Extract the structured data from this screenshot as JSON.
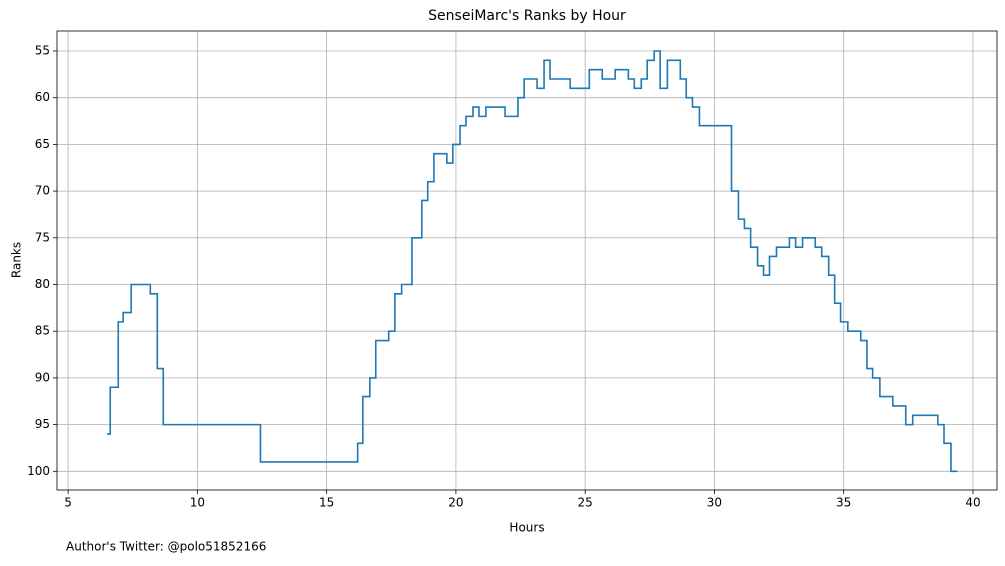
{
  "chart_data": {
    "type": "step",
    "title": "SenseiMarc's Ranks by Hour",
    "x_label": "Hours",
    "y_label": "Ranks",
    "footnote": "Author's Twitter: @polo51852166",
    "color": "#1f77b4",
    "grid": true,
    "y_inverted": true,
    "x": [
      6.51,
      6.63,
      6.94,
      7.13,
      7.44,
      8.18,
      8.45,
      8.68,
      12.44,
      16.2,
      16.4,
      16.67,
      16.9,
      17.4,
      17.64,
      17.9,
      18.3,
      18.68,
      18.91,
      19.15,
      19.65,
      19.88,
      20.16,
      20.39,
      20.66,
      20.89,
      21.16,
      21.9,
      22.4,
      22.64,
      23.14,
      23.41,
      23.64,
      24.42,
      25.16,
      25.66,
      26.16,
      26.67,
      26.9,
      27.17,
      27.4,
      27.67,
      27.9,
      28.18,
      28.68,
      28.91,
      29.15,
      29.42,
      30.66,
      30.93,
      31.16,
      31.4,
      31.67,
      31.9,
      32.13,
      32.4,
      32.9,
      33.14,
      33.41,
      33.9,
      34.15,
      34.42,
      34.65,
      34.88,
      35.16,
      35.66,
      35.9,
      36.12,
      36.4,
      36.9,
      37.4,
      37.67,
      38.64,
      38.88,
      39.15,
      39.4
    ],
    "values": [
      96,
      91,
      84,
      83,
      80,
      81,
      89,
      95,
      99,
      97,
      92,
      90,
      86,
      85,
      81,
      80,
      75,
      71,
      69,
      66,
      67,
      65,
      63,
      62,
      61,
      62,
      61,
      62,
      60,
      58,
      59,
      56,
      58,
      59,
      57,
      58,
      57,
      58,
      59,
      58,
      56,
      55,
      59,
      56,
      58,
      60,
      61,
      63,
      70,
      73,
      74,
      76,
      78,
      79,
      77,
      76,
      75,
      76,
      75,
      76,
      77,
      79,
      82,
      84,
      85,
      86,
      89,
      90,
      92,
      93,
      95,
      94,
      95,
      97,
      100,
      100
    ],
    "xlim": [
      4.57,
      40.93
    ],
    "ylim": [
      102,
      52.86
    ],
    "xticks": [
      5,
      10,
      15,
      20,
      25,
      30,
      35,
      40
    ],
    "yticks": [
      55,
      60,
      65,
      70,
      75,
      80,
      85,
      90,
      95,
      100
    ]
  }
}
